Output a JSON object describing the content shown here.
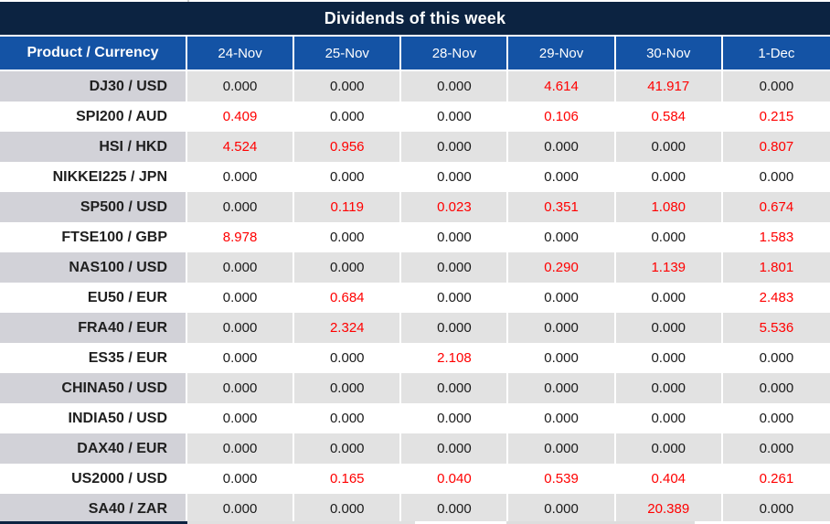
{
  "title": "Dividends of this week",
  "table": {
    "product_header": "Product / Currency",
    "date_headers": [
      "24-Nov",
      "25-Nov",
      "28-Nov",
      "29-Nov",
      "30-Nov",
      "1-Dec"
    ],
    "rows": [
      {
        "product": "DJ30 / USD",
        "values": [
          "0.000",
          "0.000",
          "0.000",
          "4.614",
          "41.917",
          "0.000"
        ]
      },
      {
        "product": "SPI200 / AUD",
        "values": [
          "0.409",
          "0.000",
          "0.000",
          "0.106",
          "0.584",
          "0.215"
        ]
      },
      {
        "product": "HSI / HKD",
        "values": [
          "4.524",
          "0.956",
          "0.000",
          "0.000",
          "0.000",
          "0.807"
        ]
      },
      {
        "product": "NIKKEI225 / JPN",
        "values": [
          "0.000",
          "0.000",
          "0.000",
          "0.000",
          "0.000",
          "0.000"
        ]
      },
      {
        "product": "SP500 / USD",
        "values": [
          "0.000",
          "0.119",
          "0.023",
          "0.351",
          "1.080",
          "0.674"
        ]
      },
      {
        "product": "FTSE100 / GBP",
        "values": [
          "8.978",
          "0.000",
          "0.000",
          "0.000",
          "0.000",
          "1.583"
        ]
      },
      {
        "product": "NAS100 / USD",
        "values": [
          "0.000",
          "0.000",
          "0.000",
          "0.290",
          "1.139",
          "1.801"
        ]
      },
      {
        "product": "EU50 / EUR",
        "values": [
          "0.000",
          "0.684",
          "0.000",
          "0.000",
          "0.000",
          "2.483"
        ]
      },
      {
        "product": "FRA40 / EUR",
        "values": [
          "0.000",
          "2.324",
          "0.000",
          "0.000",
          "0.000",
          "5.536"
        ]
      },
      {
        "product": "ES35 / EUR",
        "values": [
          "0.000",
          "0.000",
          "2.108",
          "0.000",
          "0.000",
          "0.000"
        ]
      },
      {
        "product": "CHINA50 / USD",
        "values": [
          "0.000",
          "0.000",
          "0.000",
          "0.000",
          "0.000",
          "0.000"
        ]
      },
      {
        "product": "INDIA50 / USD",
        "values": [
          "0.000",
          "0.000",
          "0.000",
          "0.000",
          "0.000",
          "0.000"
        ]
      },
      {
        "product": "DAX40 / EUR",
        "values": [
          "0.000",
          "0.000",
          "0.000",
          "0.000",
          "0.000",
          "0.000"
        ]
      },
      {
        "product": "US2000 / USD",
        "values": [
          "0.000",
          "0.165",
          "0.040",
          "0.539",
          "0.404",
          "0.261"
        ]
      },
      {
        "product": "SA40 / ZAR",
        "values": [
          "0.000",
          "0.000",
          "0.000",
          "0.000",
          "20.389",
          "0.000"
        ]
      }
    ]
  },
  "colors": {
    "title_bg": "#0c2341",
    "header_bg": "#1453a5",
    "row_alt_bg": "#e2e2e2",
    "product_alt_bg": "#d2d2d8",
    "value_zero": "#1a1a1a",
    "value_nonzero": "#ff0000"
  }
}
